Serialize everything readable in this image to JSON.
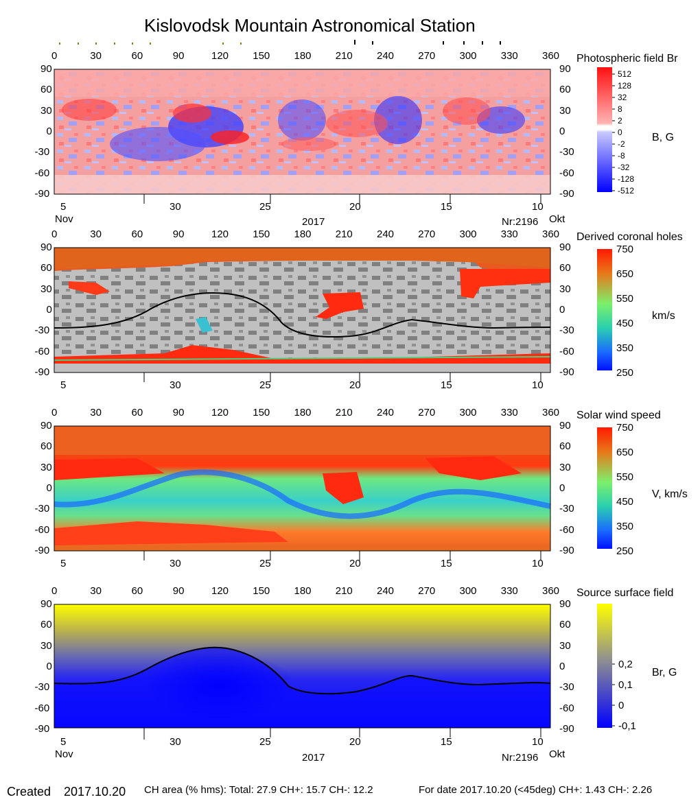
{
  "title": "Kislovodsk Mountain Astronomical Station",
  "longitude_ticks": [
    "0",
    "30",
    "60",
    "90",
    "120",
    "150",
    "180",
    "210",
    "240",
    "270",
    "300",
    "330",
    "360"
  ],
  "latitude_ticks": [
    "90",
    "60",
    "30",
    "0",
    "-30",
    "-60",
    "-90"
  ],
  "date_ticks": [
    "5",
    "30",
    "25",
    "20",
    "15",
    "10"
  ],
  "month_left": "Nov",
  "month_right": "Okt",
  "year": "2017",
  "rotation": "Nr:2196",
  "panels": [
    {
      "id": "photospheric-field",
      "label": "Photospheric field Br",
      "unit": "B, G",
      "colorbar_ticks": [
        "512",
        "128",
        "32",
        "8",
        "2",
        "0",
        "-2",
        "-8",
        "-32",
        "-128",
        "-512"
      ],
      "colors": {
        "positive": "#ff2020",
        "negative": "#1a1aff",
        "neutral": "#ffffff"
      }
    },
    {
      "id": "coronal-holes",
      "label": "Derived coronal holes",
      "unit": "km/s",
      "colorbar_ticks": [
        "750",
        "650",
        "550",
        "450",
        "350",
        "250"
      ],
      "colors": {
        "background_light": "#bfbfbf",
        "background_dark": "#808080",
        "hole": "#ff2a10"
      }
    },
    {
      "id": "solar-wind",
      "label": "Solar wind speed",
      "unit": "V, km/s",
      "colorbar_ticks": [
        "750",
        "650",
        "550",
        "450",
        "350",
        "250"
      ],
      "colors": {
        "fast": "#ff2a10",
        "slow": "#1a6aff"
      }
    },
    {
      "id": "source-surface",
      "label": "Source surface field",
      "unit": "Br, G",
      "colorbar_ticks": [
        "0,2",
        "0,1",
        "0",
        "-0,1"
      ],
      "colors": {
        "positive": "#ffff00",
        "negative": "#0000ff"
      }
    }
  ],
  "footer": {
    "created_label": "Created",
    "created_date": "2017.10.20",
    "ch_area": "CH area (% hms): Total: 27.9 CH+: 15.7   CH-: 12.2",
    "for_date": "For date 2017.10.20 (<45deg) CH+: 1.43    CH-: 2.26"
  }
}
